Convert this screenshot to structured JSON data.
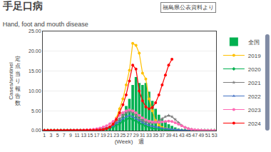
{
  "chart_data": {
    "type": "bar",
    "title": "手足口病",
    "subtitle": "Hand, foot and mouth disease",
    "xlabel": "(Week)　週",
    "ylabel": [
      "Cases/sentinel",
      "定\n点\n当\nり\n報\n告\n数"
    ],
    "annotations": [
      "福島県公表資料より"
    ],
    "x": [
      1,
      2,
      3,
      4,
      5,
      6,
      7,
      8,
      9,
      10,
      11,
      12,
      13,
      14,
      15,
      16,
      17,
      18,
      19,
      20,
      21,
      22,
      23,
      24,
      25,
      26,
      27,
      28,
      29,
      30,
      31,
      32,
      33,
      34,
      35,
      36,
      37,
      38,
      39,
      40,
      41,
      42,
      43,
      44,
      45,
      46,
      47,
      48,
      49,
      50,
      51,
      52,
      53
    ],
    "series": [
      {
        "name": "全国",
        "type": "bar",
        "color": "#00b050",
        "values": [
          0.08,
          0.08,
          0.08,
          0.07,
          0.08,
          0.08,
          0.09,
          0.1,
          0.1,
          0.11,
          0.12,
          0.12,
          0.13,
          0.14,
          0.16,
          0.19,
          0.24,
          0.31,
          0.42,
          0.61,
          0.95,
          1.5,
          2.2,
          3.2,
          4.6,
          6.2,
          8.0,
          11.5,
          13.5,
          12.0,
          11.5,
          12.0,
          9.8,
          7.5,
          5.5,
          4.0,
          3.0,
          2.2,
          1.6,
          1.2,
          0.8,
          0.5,
          0.35,
          0.25,
          0.18,
          0.13,
          0.1,
          0.09,
          0.08,
          0.08,
          0.07,
          0.07,
          0.06
        ]
      },
      {
        "name": "2019",
        "type": "line",
        "color": "#ffc000",
        "marker": "circle",
        "values": [
          0.05,
          0.05,
          0.05,
          0.05,
          0.05,
          0.05,
          0.05,
          0.05,
          0.05,
          0.06,
          0.06,
          0.07,
          0.08,
          0.09,
          0.11,
          0.13,
          0.17,
          0.22,
          0.32,
          0.55,
          0.9,
          1.7,
          3.2,
          5.5,
          8.0,
          11.5,
          15.2,
          22.0,
          21.5,
          19.5,
          14.5,
          13.0,
          8.0,
          5.0,
          2.5,
          1.4,
          0.8,
          0.5,
          0.3,
          0.18,
          0.12,
          0.08,
          0.06,
          0.04,
          0.03,
          0.03,
          0.02,
          0.02,
          0.02,
          0.02,
          0.02,
          0.02,
          0.02
        ]
      },
      {
        "name": "2020",
        "type": "line",
        "color": "#00b050",
        "marker": "diamond",
        "values": [
          0.05,
          0.05,
          0.05,
          0.05,
          0.05,
          0.05,
          0.05,
          0.05,
          0.05,
          0.05,
          0.05,
          0.06,
          0.07,
          0.08,
          0.1,
          0.12,
          0.15,
          0.2,
          0.28,
          0.4,
          0.6,
          0.9,
          1.3,
          1.8,
          2.3,
          2.8,
          3.1,
          2.8,
          2.4,
          1.9,
          1.5,
          1.1,
          0.8,
          0.6,
          0.45,
          0.35,
          0.28,
          0.22,
          0.18,
          0.14,
          0.1,
          0.08,
          0.06,
          0.05,
          0.04,
          0.03,
          0.03,
          0.02,
          0.02,
          0.02,
          0.02,
          0.02,
          0.02
        ]
      },
      {
        "name": "2021",
        "type": "line",
        "color": "#7f7f7f",
        "marker": "star",
        "values": [
          0.04,
          0.04,
          0.04,
          0.04,
          0.04,
          0.04,
          0.04,
          0.05,
          0.05,
          0.05,
          0.06,
          0.07,
          0.08,
          0.1,
          0.13,
          0.17,
          0.24,
          0.35,
          0.5,
          0.7,
          1.0,
          1.5,
          2.2,
          3.0,
          3.8,
          4.5,
          4.8,
          4.6,
          3.8,
          3.0,
          2.5,
          2.2,
          2.0,
          1.9,
          2.1,
          2.5,
          3.0,
          3.5,
          3.8,
          3.5,
          2.8,
          2.0,
          1.3,
          0.8,
          0.5,
          0.3,
          0.2,
          0.13,
          0.09,
          0.07,
          0.05,
          0.04,
          0.04
        ]
      },
      {
        "name": "2022",
        "type": "line",
        "color": "#4472c4",
        "marker": "triangle-up",
        "values": [
          0.04,
          0.04,
          0.04,
          0.04,
          0.04,
          0.04,
          0.04,
          0.04,
          0.04,
          0.04,
          0.05,
          0.05,
          0.06,
          0.07,
          0.09,
          0.12,
          0.16,
          0.22,
          0.32,
          0.5,
          0.8,
          1.2,
          1.8,
          2.4,
          3.0,
          3.5,
          3.8,
          3.5,
          3.0,
          2.5,
          2.0,
          1.6,
          1.3,
          1.1,
          0.9,
          0.75,
          0.62,
          0.5,
          0.4,
          0.3,
          0.22,
          0.16,
          0.12,
          0.08,
          0.06,
          0.05,
          0.04,
          0.03,
          0.03,
          0.02,
          0.02,
          0.02,
          0.02
        ]
      },
      {
        "name": "2023",
        "type": "line",
        "color": "#ff69b4",
        "marker": "circle",
        "values": [
          0.04,
          0.04,
          0.04,
          0.04,
          0.04,
          0.05,
          0.05,
          0.05,
          0.06,
          0.07,
          0.08,
          0.1,
          0.13,
          0.17,
          0.23,
          0.32,
          0.46,
          0.65,
          0.9,
          1.2,
          1.7,
          2.3,
          3.0,
          3.8,
          4.5,
          5.0,
          5.2,
          5.0,
          4.5,
          3.8,
          3.2,
          2.7,
          2.4,
          2.2,
          2.1,
          2.1,
          2.2,
          2.3,
          2.4,
          2.3,
          2.0,
          1.6,
          1.2,
          0.8,
          0.5,
          0.32,
          0.2,
          0.13,
          0.09,
          0.06,
          0.05,
          0.04,
          0.04
        ]
      },
      {
        "name": "2024",
        "type": "line",
        "color": "#ff0000",
        "marker": "circle",
        "values": [
          0.05,
          0.05,
          0.05,
          0.05,
          0.05,
          0.05,
          0.05,
          0.05,
          0.05,
          0.05,
          0.05,
          0.05,
          0.06,
          0.07,
          0.08,
          0.1,
          0.13,
          0.18,
          0.28,
          0.5,
          0.9,
          1.6,
          2.8,
          4.5,
          6.5,
          9.0,
          12.5,
          16.5,
          15.5,
          10.0,
          7.5,
          6.0,
          5.5,
          5.8,
          7.0,
          9.0,
          11.5,
          14.0,
          16.5,
          18.0,
          null,
          null,
          null,
          null,
          null,
          null,
          null,
          null,
          null,
          null,
          null,
          null,
          null
        ]
      }
    ],
    "xlim": [
      0.5,
      53.5
    ],
    "xticks": [
      1,
      3,
      5,
      7,
      9,
      11,
      13,
      15,
      17,
      19,
      21,
      23,
      25,
      27,
      29,
      31,
      33,
      35,
      37,
      39,
      41,
      43,
      45,
      47,
      49,
      51,
      53
    ],
    "ylim": [
      0,
      25.0
    ],
    "yticks": [
      {
        "value": 0.0,
        "label": "0.00"
      },
      {
        "value": 5.0,
        "label": "5.00"
      },
      {
        "value": 10.0,
        "label": "10.00"
      },
      {
        "value": 15.0,
        "label": "15.00"
      },
      {
        "value": 20.0,
        "label": "20.00"
      },
      {
        "value": 25.0,
        "label": "25.00"
      }
    ],
    "grid": true,
    "legend": "right"
  }
}
